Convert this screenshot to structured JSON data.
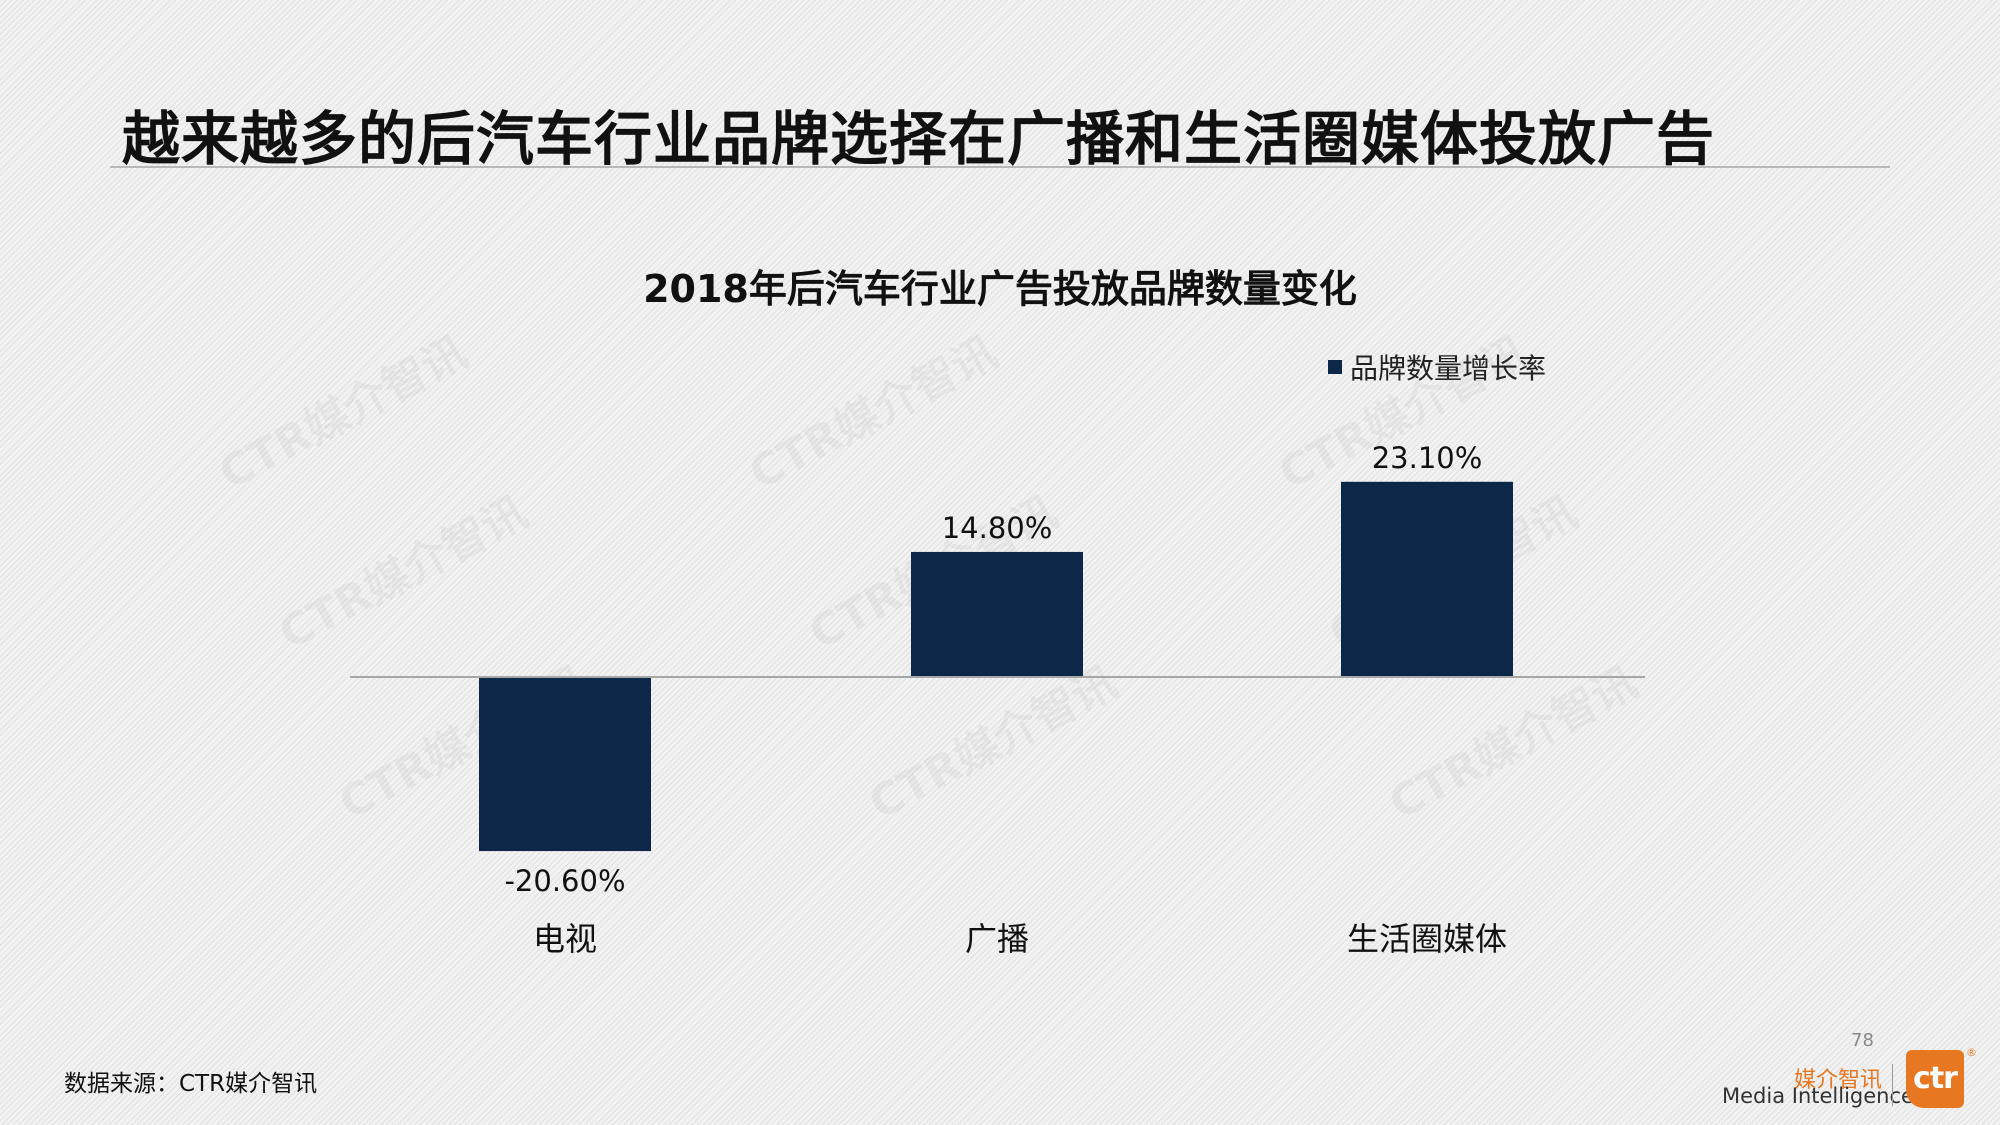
{
  "slide": {
    "title": "越来越多的后汽车行业品牌选择在广播和生活圈媒体投放广告",
    "source": "数据来源：CTR媒介智讯",
    "page_number": "78",
    "brand_cn": "媒介智讯",
    "brand_en": "Media Intelligence",
    "logo_text": "ctr",
    "logo_reg": "®",
    "watermark_text": "CTR媒介智讯"
  },
  "colors": {
    "bar": "#0c2748",
    "brand_orange": "#e87722"
  },
  "chart_data": {
    "type": "bar",
    "title": "2018年后汽车行业广告投放品牌数量变化",
    "xlabel": "",
    "ylabel": "",
    "categories": [
      "电视",
      "广播",
      "生活圈媒体"
    ],
    "series": [
      {
        "name": "品牌数量增长率",
        "values": [
          -20.6,
          14.8,
          23.1
        ],
        "labels": [
          "-20.60%",
          "14.80%",
          "23.10%"
        ]
      }
    ],
    "ylim": [
      -22,
      25
    ],
    "legend_position": "top-right",
    "grid": false
  }
}
